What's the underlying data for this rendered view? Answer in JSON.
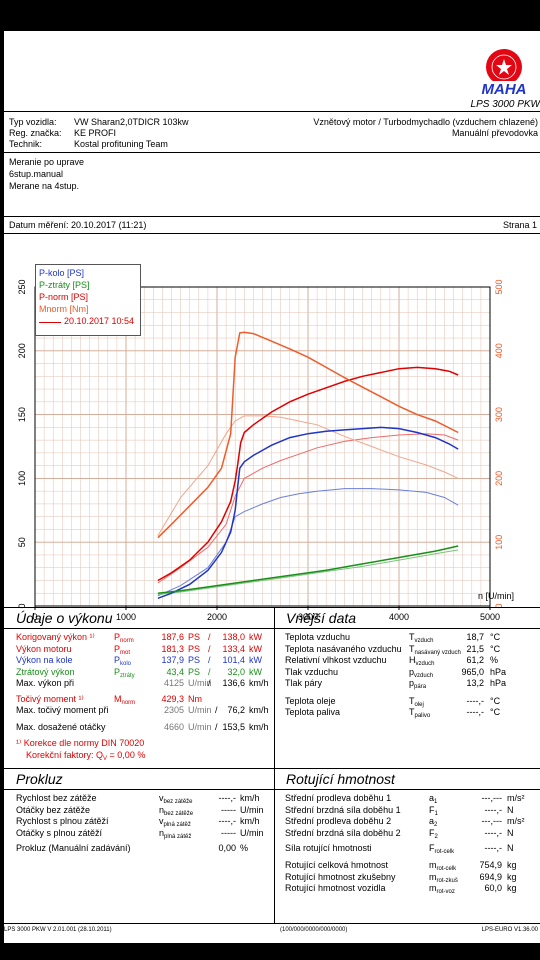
{
  "header": {
    "logo_text": "MAHA",
    "product": "LPS 3000 PKW"
  },
  "vehicle": {
    "type_label": "Typ vozidla:",
    "type_value": "VW Sharan2,0TDICR 103kw",
    "reg_label": "Reg. značka:",
    "reg_value": "KE PROFI",
    "tech_label": "Technik:",
    "tech_value": "Kostal profituning Team",
    "engine": "Vznětový motor / Turbodmychadlo (vzduchem chlazené)",
    "gearbox": "Manuální převodovka"
  },
  "notes": [
    "Meranie po uprave",
    "6stup.manual",
    "Merane na 4stup."
  ],
  "meta": {
    "date": "Datum měření: 20.10.2017 (11:21)",
    "page": "Strana 1"
  },
  "chart_data": {
    "type": "line",
    "xlabel": "n [U/min]",
    "xlim": [
      0,
      5000
    ],
    "ylim_left": [
      0,
      250
    ],
    "ylim_right": [
      0,
      500
    ],
    "x_ticks": [
      "0",
      "1000",
      "2000",
      "3000",
      "4000",
      "5000"
    ],
    "y_left_ticks": [
      "0",
      "50",
      "100",
      "150",
      "200",
      "250"
    ],
    "y_right_ticks": [
      "0",
      "100",
      "200",
      "300",
      "400",
      "500"
    ],
    "legend": [
      "P-kolo [PS]",
      "P-ztráty [PS]",
      "P-norm [PS]",
      "Mnorm [Nm]",
      "20.10.2017 10:54"
    ],
    "series": [
      {
        "name": "P-kolo [PS]",
        "color": "#1f35c8",
        "axis": "left",
        "x": [
          1350,
          1500,
          1700,
          1900,
          2050,
          2150,
          2200,
          2230,
          2250,
          2300,
          2400,
          2600,
          2800,
          3000,
          3200,
          3400,
          3600,
          3800,
          4000,
          4200,
          4400,
          4550,
          4650
        ],
        "y": [
          6,
          10,
          17,
          28,
          42,
          58,
          75,
          95,
          108,
          113,
          118,
          126,
          132,
          135,
          137,
          138,
          139,
          140,
          139,
          136,
          132,
          127,
          123
        ]
      },
      {
        "name": "P-ztráty [PS]",
        "color": "#1a8f1a",
        "axis": "left",
        "x": [
          1350,
          1600,
          2000,
          2400,
          2800,
          3200,
          3600,
          4000,
          4400,
          4650
        ],
        "y": [
          10,
          12,
          16,
          20,
          24,
          28,
          33,
          38,
          43,
          47
        ]
      },
      {
        "name": "P-norm [PS]",
        "color": "#e00000",
        "axis": "left",
        "x": [
          1350,
          1500,
          1700,
          1900,
          2050,
          2150,
          2200,
          2230,
          2260,
          2300,
          2400,
          2600,
          2800,
          3000,
          3200,
          3400,
          3600,
          3800,
          4000,
          4200,
          4400,
          4550,
          4650
        ],
        "y": [
          20,
          26,
          36,
          50,
          66,
          82,
          98,
          112,
          128,
          136,
          142,
          152,
          160,
          166,
          171,
          176,
          180,
          183,
          186,
          187,
          186,
          184,
          181
        ]
      },
      {
        "name": "Mnorm [Nm]",
        "color": "#ef5b2a",
        "axis": "right",
        "x": [
          1350,
          1500,
          1700,
          1900,
          2050,
          2150,
          2200,
          2250,
          2300,
          2400,
          2600,
          2800,
          3000,
          3200,
          3400,
          3600,
          3800,
          4000,
          4200,
          4400,
          4650
        ],
        "y": [
          107,
          128,
          157,
          186,
          216,
          270,
          390,
          428,
          429,
          427,
          415,
          403,
          390,
          374,
          358,
          343,
          328,
          313,
          300,
          290,
          272
        ]
      }
    ],
    "extra_thin_lines": [
      {
        "color": "#6b7fdc",
        "axis": "left",
        "x": [
          1350,
          1600,
          1900,
          2100,
          2200,
          2300,
          2500,
          2700,
          2900,
          3100,
          3400,
          3700,
          4000,
          4300,
          4500,
          4650
        ],
        "y": [
          8,
          16,
          30,
          50,
          70,
          74,
          80,
          85,
          88,
          90,
          92,
          92,
          91,
          89,
          85,
          79
        ]
      },
      {
        "color": "#7fc27f",
        "axis": "left",
        "x": [
          1350,
          1600,
          2000,
          2400,
          2800,
          3200,
          3600,
          4000,
          4400,
          4650
        ],
        "y": [
          9,
          11,
          15,
          19,
          23,
          27,
          31,
          36,
          41,
          44
        ]
      },
      {
        "color": "#ee6a6a",
        "axis": "left",
        "x": [
          1350,
          1600,
          1900,
          2100,
          2200,
          2300,
          2500,
          2700,
          2900,
          3100,
          3400,
          3700,
          4000,
          4300,
          4500,
          4650
        ],
        "y": [
          18,
          30,
          46,
          64,
          86,
          100,
          108,
          114,
          119,
          124,
          129,
          132,
          134,
          135,
          134,
          130
        ]
      },
      {
        "color": "#f2a58a",
        "axis": "right",
        "x": [
          1350,
          1600,
          1900,
          2100,
          2200,
          2300,
          2500,
          2700,
          2900,
          3100,
          3400,
          3700,
          4000,
          4300,
          4500,
          4650
        ],
        "y": [
          110,
          170,
          220,
          270,
          290,
          298,
          298,
          296,
          290,
          284,
          266,
          250,
          234,
          221,
          210,
          200
        ]
      }
    ]
  },
  "performance": {
    "title": "Údaje o výkonu",
    "rows": [
      {
        "label": "Korigovaný výkon ¹⁾",
        "sym": "P",
        "sub": "norm",
        "v1": "187,6",
        "u1": "PS",
        "sep": "/",
        "v2": "138,0",
        "u2": "kW"
      },
      {
        "label": "Výkon motoru",
        "sym": "P",
        "sub": "mot",
        "v1": "181,3",
        "u1": "PS",
        "sep": "/",
        "v2": "133,4",
        "u2": "kW"
      },
      {
        "label": "Výkon na kole",
        "sym": "P",
        "sub": "kolo",
        "v1": "137,9",
        "u1": "PS",
        "sep": "/",
        "v2": "101,4",
        "u2": "kW"
      },
      {
        "label": "Ztrátový výkon",
        "sym": "P",
        "sub": "ztráty",
        "v1": "43,4",
        "u1": "PS",
        "sep": "/",
        "v2": "32,0",
        "u2": "kW"
      },
      {
        "label": "Max. výkon při",
        "v1": "4125",
        "u1": "U/min",
        "sep": "/",
        "v2": "136,6",
        "u2": "km/h"
      }
    ],
    "torque_label": "Točivý moment ¹⁾",
    "torque_sym": "M",
    "torque_sub": "norm",
    "torque_value": "429,3",
    "torque_unit": "Nm",
    "max_torque_label": "Max. točivý moment při",
    "max_torque_rpm": "2305",
    "max_torque_rpm_unit": "U/min",
    "max_torque_sep": "/",
    "max_torque_speed": "76,2",
    "max_torque_speed_unit": "km/h",
    "max_rpm_label": "Max. dosažené otáčky",
    "max_rpm": "4660",
    "max_rpm_unit": "U/min",
    "max_rpm_sep": "/",
    "max_rpm_speed": "153,5",
    "max_rpm_speed_unit": "km/h",
    "footnote1": "¹⁾ Korekce dle normy DIN 70020",
    "footnote2_a": "Korekční faktory: Q",
    "footnote2_sub": "V",
    "footnote2_b": " =   0,00 %"
  },
  "external": {
    "title": "Vnější data",
    "rows": [
      {
        "label": "Teplota vzduchu",
        "sym": "T",
        "sub": "vzduch",
        "value": "18,7",
        "unit": "°C"
      },
      {
        "label": "Teplota nasávaného vzduchu",
        "sym": "T",
        "sub": "nasávaný vzduch",
        "value": "21,5",
        "unit": "°C"
      },
      {
        "label": "Relativní vlhkost vzduchu",
        "sym": "H",
        "sub": "vzduch",
        "value": "61,2",
        "unit": "%"
      },
      {
        "label": "Tlak vzduchu",
        "sym": "p",
        "sub": "vzduch",
        "value": "965,0",
        "unit": "hPa"
      },
      {
        "label": "Tlak páry",
        "sym": "p",
        "sub": "pára",
        "value": "13,2",
        "unit": "hPa"
      },
      {
        "label": "Teplota oleje",
        "sym": "T",
        "sub": "olej",
        "value": "----,-",
        "unit": "°C"
      },
      {
        "label": "Teplota paliva",
        "sym": "T",
        "sub": "palivo",
        "value": "----,-",
        "unit": "°C"
      }
    ]
  },
  "coastdown": {
    "title": "Prokluz",
    "rows": [
      {
        "label": "Rychlost bez zátěže",
        "sym": "v",
        "sub": "bez zátěže",
        "value": "----,-",
        "unit": "km/h"
      },
      {
        "label": "Otáčky bez zátěže",
        "sym": "n",
        "sub": "bez zátěže",
        "value": "-----",
        "unit": "U/min"
      },
      {
        "label": "Rychlost s plnou zátěží",
        "sym": "v",
        "sub": "plná zátěž",
        "value": "----,-",
        "unit": "km/h"
      },
      {
        "label": "Otáčky s plnou zátěží",
        "sym": "n",
        "sub": "plná zátěž",
        "value": "-----",
        "unit": "U/min"
      }
    ],
    "manual_label": "Prokluz (Manuální zadávání)",
    "manual_value": "0,00",
    "manual_unit": "%"
  },
  "inertia": {
    "title": "Rotující hmotnost",
    "rows": [
      {
        "label": "Střední prodleva doběhu 1",
        "sym": "a",
        "sub": "1",
        "value": "---,---",
        "unit": "m/s²"
      },
      {
        "label": "Střední brzdná síla doběhu 1",
        "sym": "F",
        "sub": "1",
        "value": "----,-",
        "unit": "N"
      },
      {
        "label": "Střední prodleva doběhu 2",
        "sym": "a",
        "sub": "2",
        "value": "---,---",
        "unit": "m/s²"
      },
      {
        "label": "Střední brzdná síla doběhu 2",
        "sym": "F",
        "sub": "2",
        "value": "----,-",
        "unit": "N"
      }
    ],
    "force_label": "Síla rotující hmotnosti",
    "force_sym": "F",
    "force_sub": "rot-celk",
    "force_value": "----,-",
    "force_unit": "N",
    "mass_rows": [
      {
        "label": "Rotující celková hmotnost",
        "sym": "m",
        "sub": "rot-celk",
        "value": "754,9",
        "unit": "kg"
      },
      {
        "label": "Rotující hmotnost zkušebny",
        "sym": "m",
        "sub": "rot-zkuš",
        "value": "694,9",
        "unit": "kg"
      },
      {
        "label": "Rotující hmotnost vozidla",
        "sym": "m",
        "sub": "rot-voz",
        "value": "60,0",
        "unit": "kg"
      }
    ]
  },
  "footer": {
    "left": "LPS 3000 PKW V 2.01.001 (28.10.2011)",
    "center": "(100/000/0000/000/0000)",
    "right": "LPS-EURO V1.36.00"
  }
}
